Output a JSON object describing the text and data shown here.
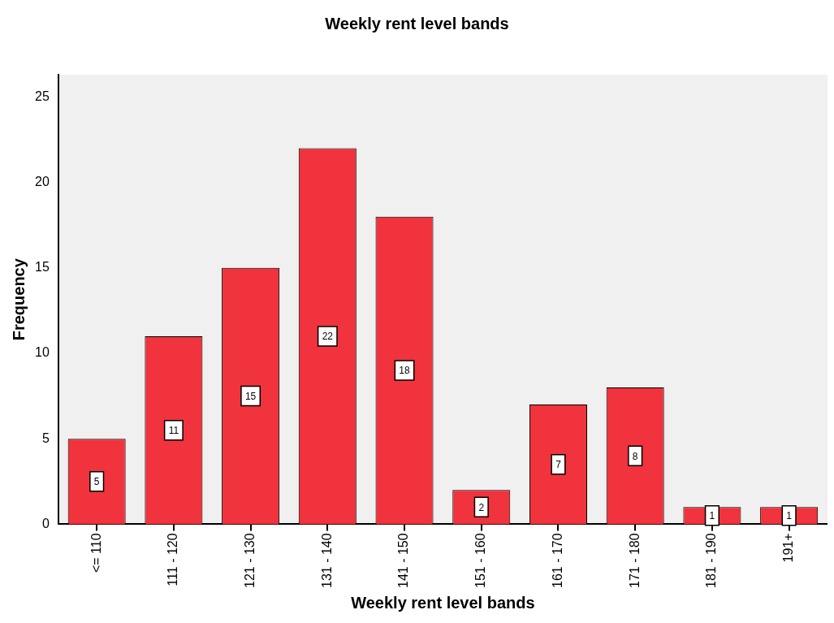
{
  "chart_data": {
    "type": "bar",
    "title": "Weekly rent level bands",
    "xlabel": "Weekly rent level bands",
    "ylabel": "Frequency",
    "categories": [
      "<= 110",
      "111 - 120",
      "121 - 130",
      "131 - 140",
      "141 - 150",
      "151 - 160",
      "161 - 170",
      "171 - 180",
      "181 - 190",
      "191+"
    ],
    "values": [
      5,
      11,
      15,
      22,
      18,
      2,
      7,
      8,
      1,
      1
    ],
    "color": "#f0333c",
    "ylim": [
      0,
      26.3
    ],
    "yticks": [
      0,
      5,
      10,
      15,
      20,
      25
    ],
    "grid": false,
    "legend": false,
    "data_labels": true
  }
}
